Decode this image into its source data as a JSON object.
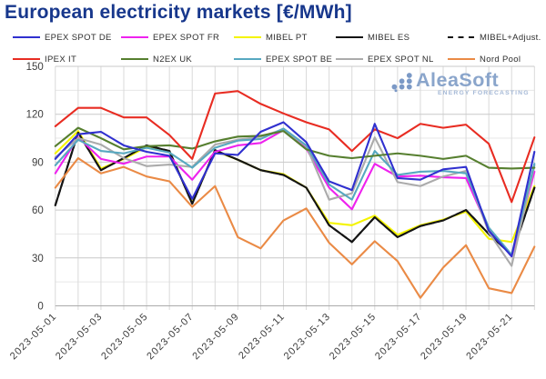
{
  "title": "European electricity markets [€/MWh]",
  "watermark": {
    "brand": "AleaSoft",
    "tagline": "ENERGY FORECASTING"
  },
  "chart_data": {
    "type": "line",
    "title": "European electricity markets [€/MWh]",
    "xlabel": "",
    "ylabel": "",
    "ylim": [
      0,
      150
    ],
    "y_major_ticks": [
      0,
      30,
      60,
      90,
      120,
      150
    ],
    "y_minor_ticks": [
      15,
      45,
      75,
      105,
      135
    ],
    "grid": true,
    "legend_position": "top",
    "x": [
      "2023-05-01",
      "2023-05-02",
      "2023-05-03",
      "2023-05-04",
      "2023-05-05",
      "2023-05-06",
      "2023-05-07",
      "2023-05-08",
      "2023-05-09",
      "2023-05-10",
      "2023-05-11",
      "2023-05-12",
      "2023-05-13",
      "2023-05-14",
      "2023-05-15",
      "2023-05-16",
      "2023-05-17",
      "2023-05-18",
      "2023-05-19",
      "2023-05-20",
      "2023-05-21",
      "2023-05-22"
    ],
    "x_labeled_ticks": [
      "2023-05-01",
      "2023-05-03",
      "2023-05-05",
      "2023-05-07",
      "2023-05-09",
      "2023-05-11",
      "2023-05-13",
      "2023-05-15",
      "2023-05-17",
      "2023-05-19",
      "2023-05-21"
    ],
    "series": [
      {
        "name": "EPEX SPOT DE",
        "color": "#3030cf",
        "dash": null,
        "values": [
          92,
          107.5,
          109,
          100.5,
          96.5,
          94,
          67,
          95.5,
          94.5,
          109,
          115,
          102.5,
          78,
          72.5,
          114,
          80,
          79,
          85.5,
          87,
          47,
          31,
          96.5
        ]
      },
      {
        "name": "EPEX SPOT FR",
        "color": "#ee22ee",
        "dash": null,
        "values": [
          83,
          105.5,
          92,
          89,
          93.5,
          93.5,
          79,
          96.5,
          100.5,
          102,
          110,
          98.5,
          74,
          60.5,
          89,
          81,
          81.5,
          80.5,
          80,
          48,
          31,
          84
        ]
      },
      {
        "name": "MIBEL PT",
        "color": "#f4f400",
        "dash": null,
        "values": [
          95.5,
          109.5,
          86,
          92,
          99.5,
          96.5,
          64.5,
          97,
          91.5,
          85,
          82.5,
          74,
          52,
          50.5,
          56.5,
          44.5,
          50.5,
          54,
          59,
          42,
          40,
          75
        ]
      },
      {
        "name": "MIBEL ES",
        "color": "#141414",
        "dash": null,
        "values": [
          63,
          108.5,
          85,
          92.5,
          100.5,
          97,
          64,
          97.5,
          91.5,
          85,
          82,
          74,
          50.5,
          40,
          55.5,
          43,
          50,
          53.5,
          60,
          45,
          32,
          74
        ]
      },
      {
        "name": "MIBEL+Adjust.",
        "color": "#141414",
        "dash": "6,5",
        "values": [
          63,
          108.5,
          85,
          92.5,
          100.5,
          97,
          64,
          97.5,
          91.5,
          85,
          82,
          74,
          50.5,
          40,
          55.5,
          43,
          50,
          53.5,
          60,
          45,
          32,
          74
        ]
      },
      {
        "name": "IPEX IT",
        "color": "#e82c22",
        "dash": null,
        "values": [
          112.5,
          124,
          124,
          118,
          118,
          107,
          92,
          133,
          134.5,
          126.5,
          120.5,
          115,
          110.5,
          97,
          110.5,
          105,
          114,
          111.5,
          113.5,
          101.5,
          65,
          105.5
        ]
      },
      {
        "name": "N2EX UK",
        "color": "#567f2f",
        "dash": null,
        "values": [
          100,
          111.5,
          105,
          98,
          100,
          100.5,
          98.5,
          103,
          106,
          106.5,
          109.5,
          98,
          94,
          92.5,
          94,
          95.5,
          94,
          92,
          94,
          86.5,
          86,
          86.5
        ]
      },
      {
        "name": "EPEX SPOT BE",
        "color": "#57a8c0",
        "dash": null,
        "values": [
          88,
          104,
          97,
          95.5,
          99,
          96,
          86.5,
          99,
          103.5,
          104.5,
          111,
          100.5,
          76,
          66.5,
          97,
          82,
          84,
          84.5,
          83,
          49,
          32,
          89
        ]
      },
      {
        "name": "EPEX SPOT NL",
        "color": "#ababab",
        "dash": null,
        "values": [
          93,
          105,
          101,
          92.5,
          87.5,
          88.5,
          87,
          101,
          104,
          106,
          110.5,
          100,
          66.5,
          70.5,
          105.5,
          77.5,
          75,
          81,
          84.5,
          46,
          25,
          88
        ]
      },
      {
        "name": "Nord Pool",
        "color": "#ea8a45",
        "dash": null,
        "values": [
          74,
          92.5,
          83,
          87,
          81,
          78,
          62,
          75,
          43,
          36,
          53.5,
          61,
          39.5,
          26,
          40.5,
          28,
          5,
          24,
          38,
          11,
          8,
          37
        ]
      }
    ]
  }
}
